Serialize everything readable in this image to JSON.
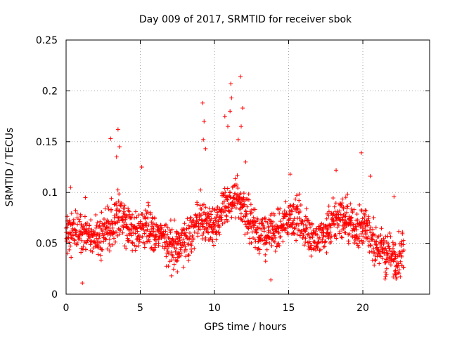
{
  "chart_data": {
    "type": "scatter",
    "title": "Day 009 of 2017, SRMTID for receiver sbok",
    "xlabel": "GPS time / hours",
    "ylabel": "SRMTID / TECUs",
    "xlim": [
      0,
      24.5
    ],
    "ylim": [
      0,
      0.25
    ],
    "x_ticks": [
      "0",
      "5",
      "10",
      "15",
      "20"
    ],
    "x_tick_values": [
      0,
      5,
      10,
      15,
      20
    ],
    "y_ticks": [
      "0",
      "0.05",
      "0.1",
      "0.15",
      "0.2",
      "0.25"
    ],
    "y_tick_values": [
      0,
      0.05,
      0.1,
      0.15,
      0.2,
      0.25
    ],
    "grid": true,
    "marker": "+",
    "point_color": "#ff0000",
    "series": [
      {
        "name": "SRMTID",
        "x_start": 0.0,
        "x_end": 22.75,
        "x_step": 0.0333,
        "baseline_x": [
          0,
          0.5,
          1,
          1.5,
          2,
          2.5,
          3,
          3.5,
          4,
          4.5,
          5,
          5.5,
          6,
          6.5,
          7,
          7.5,
          8,
          8.5,
          9,
          9.5,
          10,
          10.5,
          11,
          11.5,
          12,
          12.5,
          13,
          13.5,
          14,
          14.5,
          15,
          15.5,
          16,
          16.5,
          17,
          17.5,
          18,
          18.5,
          19,
          19.5,
          20,
          20.5,
          21,
          21.5,
          22,
          22.75
        ],
        "baseline_y": [
          0.06,
          0.065,
          0.06,
          0.058,
          0.055,
          0.058,
          0.068,
          0.08,
          0.07,
          0.062,
          0.06,
          0.065,
          0.06,
          0.055,
          0.048,
          0.05,
          0.055,
          0.062,
          0.075,
          0.07,
          0.068,
          0.08,
          0.09,
          0.092,
          0.085,
          0.07,
          0.062,
          0.058,
          0.06,
          0.065,
          0.075,
          0.078,
          0.068,
          0.058,
          0.055,
          0.062,
          0.07,
          0.078,
          0.072,
          0.065,
          0.068,
          0.058,
          0.048,
          0.04,
          0.038,
          0.04
        ],
        "spread": 0.02,
        "highlights": [
          {
            "x": 0.3,
            "y": 0.105
          },
          {
            "x": 1.1,
            "y": 0.011
          },
          {
            "x": 1.3,
            "y": 0.095
          },
          {
            "x": 3.0,
            "y": 0.153
          },
          {
            "x": 3.5,
            "y": 0.162
          },
          {
            "x": 3.6,
            "y": 0.145
          },
          {
            "x": 3.4,
            "y": 0.135
          },
          {
            "x": 5.1,
            "y": 0.125
          },
          {
            "x": 7.1,
            "y": 0.018
          },
          {
            "x": 7.5,
            "y": 0.022
          },
          {
            "x": 9.2,
            "y": 0.188
          },
          {
            "x": 9.3,
            "y": 0.17
          },
          {
            "x": 9.25,
            "y": 0.152
          },
          {
            "x": 9.4,
            "y": 0.143
          },
          {
            "x": 10.7,
            "y": 0.175
          },
          {
            "x": 10.9,
            "y": 0.165
          },
          {
            "x": 11.1,
            "y": 0.207
          },
          {
            "x": 11.15,
            "y": 0.193
          },
          {
            "x": 11.05,
            "y": 0.18
          },
          {
            "x": 11.75,
            "y": 0.214
          },
          {
            "x": 11.9,
            "y": 0.183
          },
          {
            "x": 11.8,
            "y": 0.165
          },
          {
            "x": 11.6,
            "y": 0.152
          },
          {
            "x": 12.1,
            "y": 0.13
          },
          {
            "x": 13.8,
            "y": 0.014
          },
          {
            "x": 15.1,
            "y": 0.118
          },
          {
            "x": 18.2,
            "y": 0.122
          },
          {
            "x": 19.9,
            "y": 0.139
          },
          {
            "x": 20.5,
            "y": 0.116
          },
          {
            "x": 21.2,
            "y": 0.058
          },
          {
            "x": 22.1,
            "y": 0.096
          },
          {
            "x": 22.2,
            "y": 0.019
          },
          {
            "x": 21.5,
            "y": 0.015
          }
        ]
      }
    ]
  }
}
